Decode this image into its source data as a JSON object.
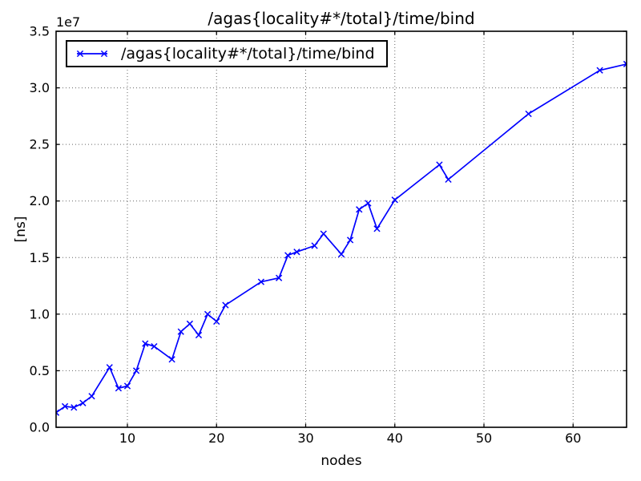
{
  "figure": {
    "background_color": "#ffffff",
    "axes_background_color": "#ffffff",
    "spine_color": "#000000",
    "grid_color": "#666666",
    "text_color": "#000000"
  },
  "chart_data": {
    "type": "line",
    "title": "/agas{locality#*/total}/time/bind",
    "xlabel": "nodes",
    "ylabel": "[ns]",
    "y_offset_label": "1e7",
    "grid": true,
    "xlim": [
      2,
      66
    ],
    "ylim": [
      0,
      35000000
    ],
    "x_ticks": [
      10,
      20,
      30,
      40,
      50,
      60
    ],
    "y_ticks": [
      0,
      5000000,
      10000000,
      15000000,
      20000000,
      25000000,
      30000000,
      35000000
    ],
    "y_tick_labels": [
      "0.0",
      "0.5",
      "1.0",
      "1.5",
      "2.0",
      "2.5",
      "3.0",
      "3.5"
    ],
    "legend": {
      "position": "upper-left",
      "entries": [
        {
          "label": "/agas{locality#*/total}/time/bind",
          "color": "#0000ff",
          "marker": "x"
        }
      ]
    },
    "series": [
      {
        "name": "/agas{locality#*/total}/time/bind",
        "color": "#0000ff",
        "marker": "x",
        "x": [
          2,
          3,
          4,
          5,
          6,
          8,
          9,
          10,
          11,
          12,
          13,
          15,
          16,
          17,
          18,
          19,
          20,
          21,
          25,
          27,
          28,
          29,
          31,
          32,
          34,
          35,
          36,
          37,
          38,
          40,
          45,
          46,
          55,
          63,
          66
        ],
        "y": [
          1300000,
          1850000,
          1750000,
          2150000,
          2750000,
          5300000,
          3450000,
          3650000,
          5000000,
          7400000,
          7150000,
          6000000,
          8450000,
          9150000,
          8150000,
          10000000,
          9350000,
          10800000,
          12850000,
          13200000,
          15200000,
          15500000,
          16050000,
          17100000,
          15300000,
          16550000,
          19250000,
          19800000,
          17550000,
          20100000,
          23200000,
          21900000,
          27700000,
          31550000,
          32100000
        ]
      }
    ]
  }
}
